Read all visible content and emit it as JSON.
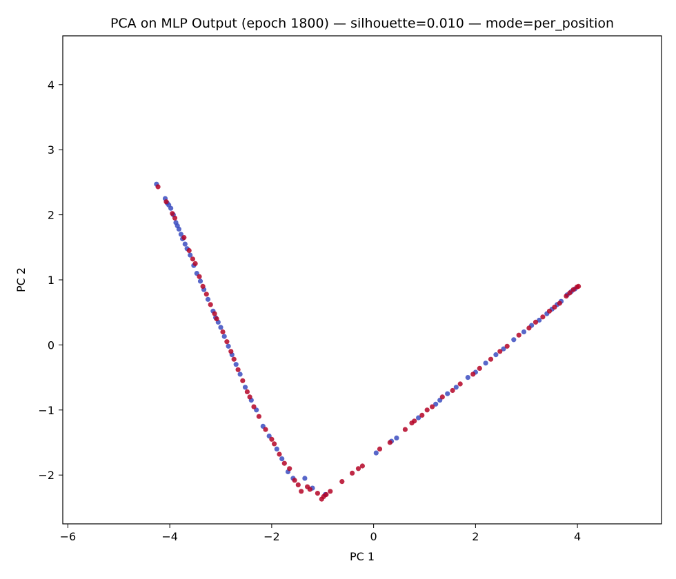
{
  "chart_data": {
    "type": "scatter",
    "title": "PCA on MLP Output (epoch 1800) — silhouette=0.010 — mode=per_position",
    "xlabel": "PC 1",
    "ylabel": "PC 2",
    "xlim": [
      -6.1,
      5.65
    ],
    "ylim": [
      -2.75,
      4.75
    ],
    "xticks": [
      -6,
      -4,
      -2,
      0,
      2,
      4
    ],
    "xtick_labels": [
      "−6",
      "−4",
      "−2",
      "0",
      "2",
      "4"
    ],
    "yticks": [
      -2,
      -1,
      0,
      1,
      2,
      3,
      4
    ],
    "ytick_labels": [
      "−2",
      "−1",
      "0",
      "1",
      "2",
      "3",
      "4"
    ],
    "grid": false,
    "colors": {
      "class_a": "#3b4cc0",
      "class_b": "#b40426"
    },
    "series": [
      {
        "color": "#3b4cc0",
        "points": [
          [
            -4.26,
            2.47
          ],
          [
            -4.09,
            2.25
          ],
          [
            -4.05,
            2.18
          ],
          [
            -4.02,
            2.15
          ],
          [
            -3.98,
            2.1
          ],
          [
            -3.93,
            2.0
          ],
          [
            -3.88,
            1.88
          ],
          [
            -3.85,
            1.83
          ],
          [
            -3.82,
            1.78
          ],
          [
            -3.78,
            1.7
          ],
          [
            -3.75,
            1.63
          ],
          [
            -3.7,
            1.55
          ],
          [
            -3.66,
            1.48
          ],
          [
            -3.6,
            1.38
          ],
          [
            -3.53,
            1.22
          ],
          [
            -3.47,
            1.1
          ],
          [
            -3.4,
            0.98
          ],
          [
            -3.33,
            0.85
          ],
          [
            -3.25,
            0.7
          ],
          [
            -3.15,
            0.52
          ],
          [
            -3.1,
            0.42
          ],
          [
            -3.05,
            0.35
          ],
          [
            -3.0,
            0.27
          ],
          [
            -2.93,
            0.13
          ],
          [
            -2.85,
            -0.02
          ],
          [
            -2.78,
            -0.15
          ],
          [
            -2.7,
            -0.3
          ],
          [
            -2.62,
            -0.45
          ],
          [
            -2.52,
            -0.65
          ],
          [
            -2.4,
            -0.85
          ],
          [
            -2.3,
            -1.0
          ],
          [
            -2.17,
            -1.25
          ],
          [
            -2.05,
            -1.4
          ],
          [
            -1.9,
            -1.6
          ],
          [
            -1.8,
            -1.75
          ],
          [
            -1.68,
            -1.95
          ],
          [
            -1.58,
            -2.05
          ],
          [
            -1.35,
            -2.05
          ],
          [
            -1.2,
            -2.2
          ],
          [
            -0.95,
            -2.3
          ],
          [
            0.05,
            -1.66
          ],
          [
            0.35,
            -1.48
          ],
          [
            0.45,
            -1.43
          ],
          [
            0.88,
            -1.12
          ],
          [
            1.22,
            -0.91
          ],
          [
            1.3,
            -0.85
          ],
          [
            1.45,
            -0.75
          ],
          [
            1.62,
            -0.65
          ],
          [
            1.85,
            -0.5
          ],
          [
            2.0,
            -0.42
          ],
          [
            2.2,
            -0.28
          ],
          [
            2.4,
            -0.15
          ],
          [
            2.55,
            -0.06
          ],
          [
            2.75,
            0.08
          ],
          [
            2.95,
            0.2
          ],
          [
            3.1,
            0.3
          ],
          [
            3.25,
            0.38
          ],
          [
            3.4,
            0.48
          ],
          [
            3.5,
            0.55
          ],
          [
            3.6,
            0.62
          ],
          [
            3.68,
            0.67
          ],
          [
            3.8,
            0.77
          ],
          [
            3.88,
            0.82
          ],
          [
            3.95,
            0.86
          ]
        ]
      },
      {
        "color": "#b40426",
        "points": [
          [
            -4.23,
            2.43
          ],
          [
            -4.07,
            2.2
          ],
          [
            -3.95,
            2.02
          ],
          [
            -3.9,
            1.95
          ],
          [
            -3.72,
            1.65
          ],
          [
            -3.62,
            1.45
          ],
          [
            -3.55,
            1.32
          ],
          [
            -3.5,
            1.25
          ],
          [
            -3.42,
            1.05
          ],
          [
            -3.35,
            0.9
          ],
          [
            -3.28,
            0.78
          ],
          [
            -3.2,
            0.62
          ],
          [
            -3.12,
            0.48
          ],
          [
            -3.08,
            0.4
          ],
          [
            -2.96,
            0.2
          ],
          [
            -2.88,
            0.05
          ],
          [
            -2.8,
            -0.1
          ],
          [
            -2.74,
            -0.22
          ],
          [
            -2.66,
            -0.38
          ],
          [
            -2.57,
            -0.55
          ],
          [
            -2.48,
            -0.72
          ],
          [
            -2.43,
            -0.8
          ],
          [
            -2.35,
            -0.95
          ],
          [
            -2.25,
            -1.1
          ],
          [
            -2.12,
            -1.3
          ],
          [
            -2.0,
            -1.45
          ],
          [
            -1.95,
            -1.52
          ],
          [
            -1.85,
            -1.68
          ],
          [
            -1.75,
            -1.82
          ],
          [
            -1.65,
            -1.9
          ],
          [
            -1.55,
            -2.08
          ],
          [
            -1.48,
            -2.15
          ],
          [
            -1.42,
            -2.25
          ],
          [
            -1.3,
            -2.18
          ],
          [
            -1.25,
            -2.22
          ],
          [
            -1.1,
            -2.28
          ],
          [
            -1.02,
            -2.37
          ],
          [
            -0.98,
            -2.33
          ],
          [
            -0.93,
            -2.3
          ],
          [
            -0.85,
            -2.25
          ],
          [
            -0.62,
            -2.1
          ],
          [
            -0.42,
            -1.97
          ],
          [
            -0.3,
            -1.9
          ],
          [
            -0.22,
            -1.86
          ],
          [
            0.12,
            -1.6
          ],
          [
            0.32,
            -1.5
          ],
          [
            0.62,
            -1.3
          ],
          [
            0.75,
            -1.2
          ],
          [
            0.8,
            -1.17
          ],
          [
            0.95,
            -1.08
          ],
          [
            1.05,
            -1.0
          ],
          [
            1.15,
            -0.95
          ],
          [
            1.35,
            -0.8
          ],
          [
            1.55,
            -0.7
          ],
          [
            1.7,
            -0.6
          ],
          [
            1.95,
            -0.45
          ],
          [
            2.08,
            -0.36
          ],
          [
            2.3,
            -0.22
          ],
          [
            2.48,
            -0.1
          ],
          [
            2.62,
            -0.02
          ],
          [
            2.85,
            0.15
          ],
          [
            3.05,
            0.26
          ],
          [
            3.18,
            0.35
          ],
          [
            3.32,
            0.43
          ],
          [
            3.45,
            0.52
          ],
          [
            3.55,
            0.58
          ],
          [
            3.65,
            0.64
          ],
          [
            3.78,
            0.75
          ],
          [
            3.85,
            0.8
          ],
          [
            3.92,
            0.85
          ],
          [
            3.99,
            0.89
          ],
          [
            4.02,
            0.9
          ]
        ]
      }
    ]
  }
}
